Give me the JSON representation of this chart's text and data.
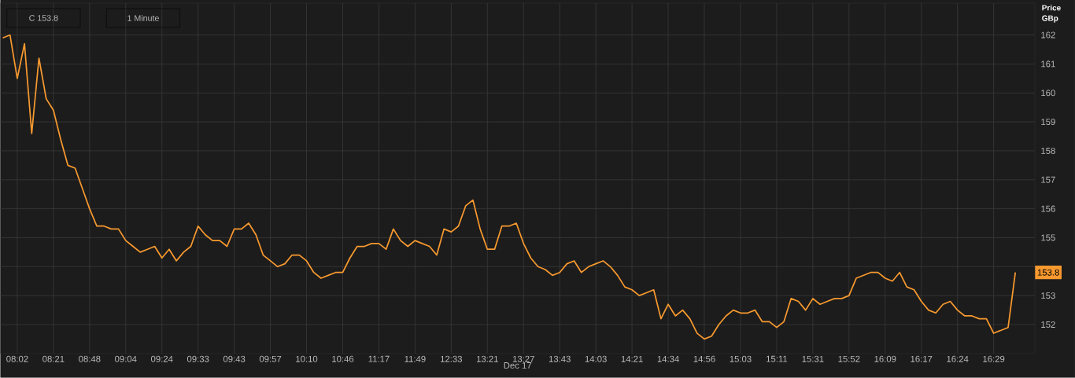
{
  "chart_data": {
    "type": "line",
    "xlabel": "Dec 17",
    "ylabel": "Price GBp",
    "categories": [
      null,
      null,
      "08:02",
      null,
      null,
      null,
      null,
      "08:21",
      null,
      null,
      null,
      null,
      "08:48",
      null,
      null,
      null,
      null,
      "09:04",
      null,
      null,
      null,
      null,
      "09:24",
      null,
      null,
      null,
      null,
      "09:33",
      null,
      null,
      null,
      null,
      "09:43",
      null,
      null,
      null,
      null,
      "09:57",
      null,
      null,
      null,
      null,
      "10:10",
      null,
      null,
      null,
      null,
      "10:46",
      null,
      null,
      null,
      null,
      "11:17",
      null,
      null,
      null,
      null,
      "11:49",
      null,
      null,
      null,
      null,
      "12:33",
      null,
      null,
      null,
      null,
      "13:21",
      null,
      null,
      null,
      null,
      "13:27",
      null,
      null,
      null,
      null,
      "13:43",
      null,
      null,
      null,
      null,
      "14:03",
      null,
      null,
      null,
      null,
      "14:21",
      null,
      null,
      null,
      null,
      "14:34",
      null,
      null,
      null,
      null,
      "14:56",
      null,
      null,
      null,
      null,
      "15:03",
      null,
      null,
      null,
      null,
      "15:11",
      null,
      null,
      null,
      null,
      "15:31",
      null,
      null,
      null,
      null,
      "15:52",
      null,
      null,
      null,
      null,
      "16:09",
      null,
      null,
      null,
      null,
      "16:17",
      null,
      null,
      null,
      null,
      "16:24",
      null,
      null,
      null,
      null,
      "16:29",
      null,
      null,
      null
    ],
    "series": [
      {
        "color": "#f7992f",
        "values": [
          161.9,
          162.0,
          160.5,
          161.7,
          158.6,
          161.2,
          159.8,
          159.4,
          158.4,
          157.5,
          157.4,
          156.7,
          156.0,
          155.4,
          155.4,
          155.3,
          155.3,
          154.9,
          154.7,
          154.5,
          154.6,
          154.7,
          154.3,
          154.6,
          154.2,
          154.5,
          154.7,
          155.4,
          155.1,
          154.9,
          154.9,
          154.7,
          155.3,
          155.3,
          155.5,
          155.1,
          154.4,
          154.2,
          154.0,
          154.1,
          154.4,
          154.4,
          154.2,
          153.8,
          153.6,
          153.7,
          153.8,
          153.8,
          154.3,
          154.7,
          154.7,
          154.8,
          154.8,
          154.6,
          155.3,
          154.9,
          154.7,
          154.9,
          154.8,
          154.7,
          154.4,
          155.3,
          155.2,
          155.4,
          156.1,
          156.3,
          155.3,
          154.6,
          154.6,
          155.4,
          155.4,
          155.5,
          154.8,
          154.3,
          154.0,
          153.9,
          153.7,
          153.8,
          154.1,
          154.2,
          153.8,
          154.0,
          154.1,
          154.2,
          154.0,
          153.7,
          153.3,
          153.2,
          153.0,
          153.1,
          153.2,
          152.2,
          152.7,
          152.3,
          152.5,
          152.2,
          151.7,
          151.5,
          151.6,
          152.0,
          152.3,
          152.5,
          152.4,
          152.4,
          152.5,
          152.1,
          152.1,
          151.9,
          152.1,
          152.9,
          152.8,
          152.5,
          152.9,
          152.7,
          152.8,
          152.9,
          152.9,
          153.0,
          153.6,
          153.7,
          153.8,
          153.8,
          153.6,
          153.5,
          153.8,
          153.3,
          153.2,
          152.8,
          152.5,
          152.4,
          152.7,
          152.8,
          152.5,
          152.3,
          152.3,
          152.2,
          152.2,
          151.7,
          151.8,
          151.9,
          153.8
        ]
      }
    ],
    "ylim": [
      151.0,
      163.1
    ],
    "yticks": [
      152,
      153,
      {
        "value": 154,
        "label": null
      },
      155,
      156,
      157,
      158,
      159,
      160,
      161,
      162
    ],
    "grid": true,
    "marker": "none",
    "line_style": "solid",
    "annotations": [
      "C 153.8",
      "1 Minute",
      "153.8"
    ]
  }
}
